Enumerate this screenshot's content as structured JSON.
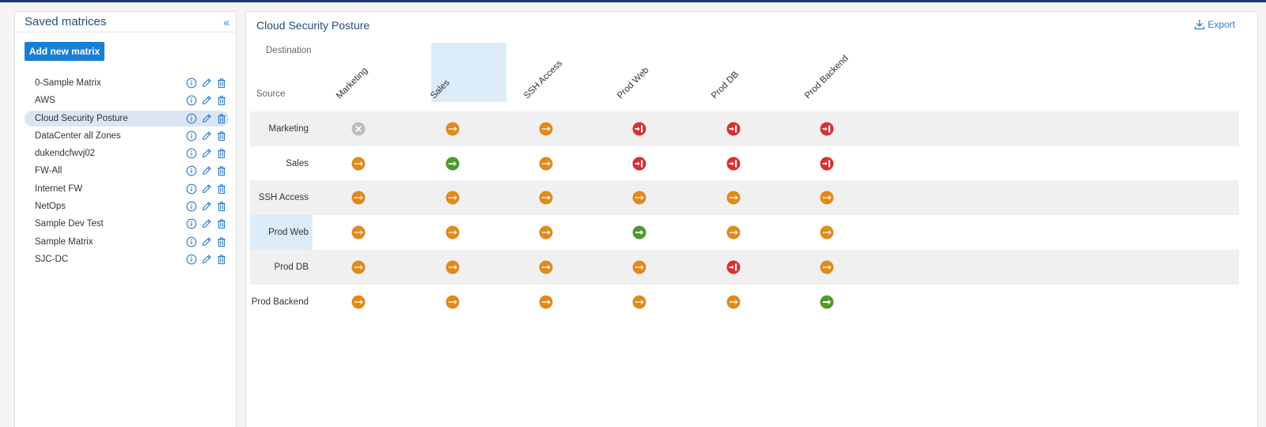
{
  "sidebar": {
    "title": "Saved matrices",
    "add_button_label": "Add new matrix",
    "items": [
      {
        "label": "0-Sample Matrix",
        "selected": false
      },
      {
        "label": "AWS",
        "selected": false
      },
      {
        "label": "Cloud Security Posture",
        "selected": true
      },
      {
        "label": "DataCenter all Zones",
        "selected": false
      },
      {
        "label": "dukendcfwvj02",
        "selected": false
      },
      {
        "label": "FW-All",
        "selected": false
      },
      {
        "label": "Internet FW",
        "selected": false
      },
      {
        "label": "NetOps",
        "selected": false
      },
      {
        "label": "Sample Dev Test",
        "selected": false
      },
      {
        "label": "Sample Matrix",
        "selected": false
      },
      {
        "label": "SJC-DC",
        "selected": false
      }
    ]
  },
  "main": {
    "title": "Cloud Security Posture",
    "export_label": "Export",
    "destination_label": "Destination",
    "source_label": "Source",
    "columns": [
      "Marketing",
      "Sales",
      "SSH Access",
      "Prod Web",
      "Prod DB",
      "Prod Backend"
    ],
    "highlighted_column": "Sales",
    "highlighted_row": "Prod Web",
    "rows": [
      {
        "label": "Marketing",
        "cells": [
          "none",
          "partial",
          "partial",
          "blocked",
          "blocked",
          "blocked"
        ]
      },
      {
        "label": "Sales",
        "cells": [
          "partial",
          "allowed",
          "partial",
          "blocked",
          "blocked",
          "blocked"
        ]
      },
      {
        "label": "SSH Access",
        "cells": [
          "partial",
          "partial",
          "partial",
          "partial",
          "partial",
          "partial"
        ]
      },
      {
        "label": "Prod Web",
        "cells": [
          "partial",
          "partial",
          "partial",
          "allowed",
          "partial",
          "partial"
        ]
      },
      {
        "label": "Prod DB",
        "cells": [
          "partial",
          "partial",
          "partial",
          "partial",
          "blocked",
          "partial"
        ]
      },
      {
        "label": "Prod Backend",
        "cells": [
          "partial",
          "partial",
          "partial",
          "partial",
          "partial",
          "allowed"
        ]
      }
    ]
  },
  "colors": {
    "accent": "#1a7fd4",
    "title": "#1f4e79",
    "partial": "#e08a1e",
    "allowed": "#4e9a2e",
    "blocked": "#d63030",
    "none": "#bdbdbd",
    "highlight": "#dcecf8"
  },
  "icons": {
    "collapse": "double-chevron-left-icon",
    "info": "info-icon",
    "edit": "pencil-icon",
    "delete": "trash-icon",
    "export": "download-icon",
    "partial": "partial-access-icon",
    "allowed": "allowed-arrow-icon",
    "blocked": "blocked-icon",
    "none": "no-access-icon"
  }
}
